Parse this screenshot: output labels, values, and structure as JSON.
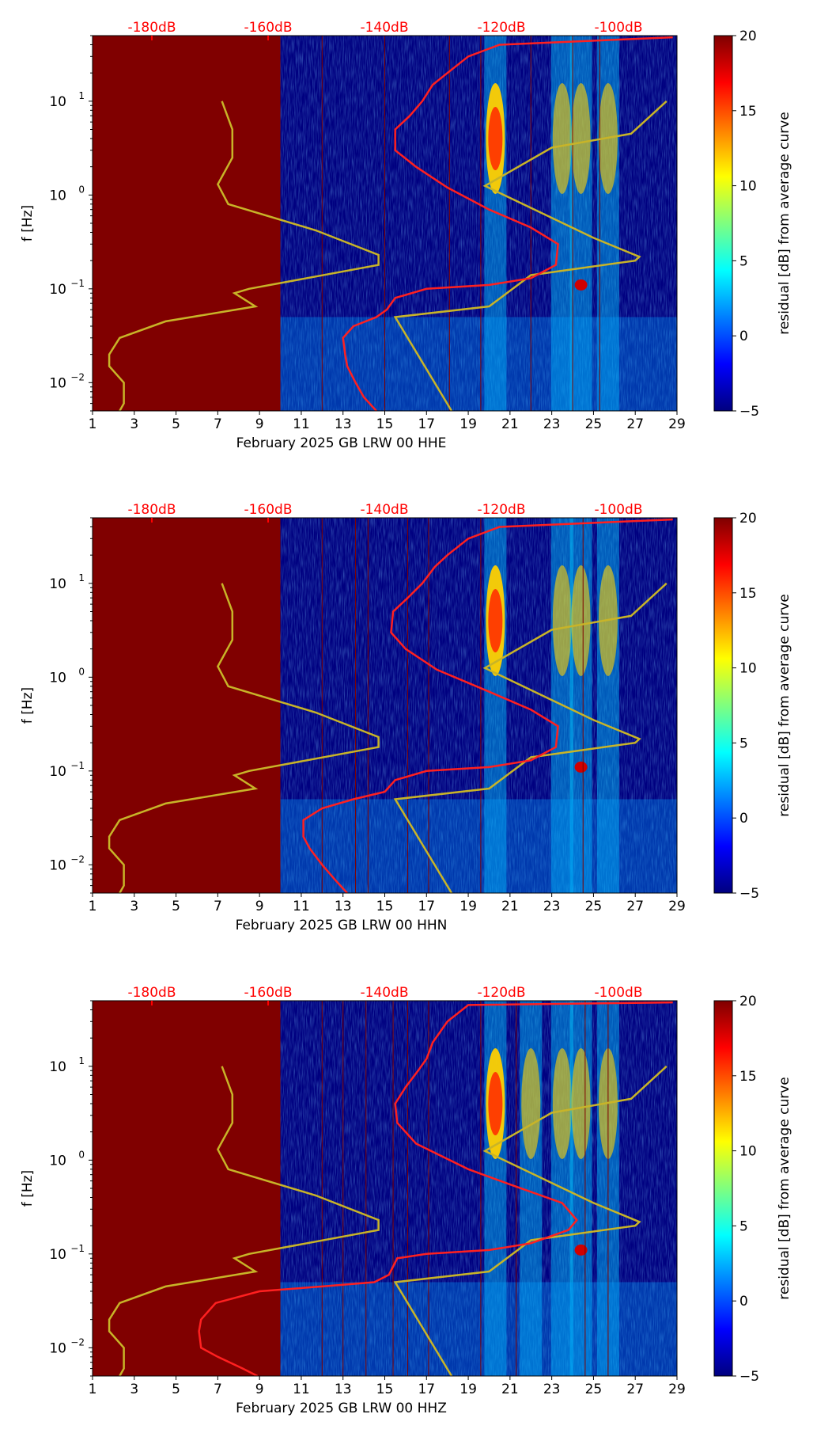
{
  "colorbar": {
    "label": "residual [dB] from average curve",
    "ticks": [
      "20",
      "15",
      "10",
      "5",
      "0",
      "−5"
    ],
    "range": [
      -5,
      20
    ],
    "colormap": [
      "#00007f",
      "#0000ff",
      "#007fff",
      "#00ffff",
      "#7fff7f",
      "#ffff00",
      "#ff7f00",
      "#ff0000",
      "#7f0000"
    ]
  },
  "panel_colors": {
    "background": "#000080",
    "nodata": "#800000",
    "model_curve": "#ff2020",
    "reference_curve": "#c8b428",
    "gridline": "#800000",
    "db_label": "#ff0000"
  },
  "chart_data": [
    {
      "type": "heatmap",
      "xlabel": "February 2025 GB LRW 00 HHE",
      "ylabel": "f [Hz]",
      "x_ticks": [
        "1",
        "3",
        "5",
        "7",
        "9",
        "11",
        "13",
        "15",
        "17",
        "19",
        "21",
        "23",
        "25",
        "27",
        "29"
      ],
      "y_ticks": [
        "10",
        "10",
        "10",
        "10"
      ],
      "y_tick_exponents": [
        "1",
        "0",
        "−1",
        "−2"
      ],
      "y_scale": "log",
      "xlim": [
        1,
        29
      ],
      "ylim": [
        0.005,
        50
      ],
      "top_axis_ticks": [
        "-180dB",
        "-160dB",
        "-140dB",
        "-120dB",
        "-100dB"
      ],
      "nodata_until_day": 10,
      "red_vlines": [
        12.0,
        15.0,
        18.1,
        19.6,
        22.0,
        24.0,
        25.3
      ],
      "bright_bands_days": [
        20.3,
        23.5,
        24.4,
        25.7
      ],
      "red_curve": [
        [
          14.6,
          0.005
        ],
        [
          14.0,
          0.007
        ],
        [
          13.6,
          0.01
        ],
        [
          13.2,
          0.015
        ],
        [
          13.1,
          0.02
        ],
        [
          13.0,
          0.03
        ],
        [
          13.5,
          0.04
        ],
        [
          14.6,
          0.05
        ],
        [
          15.1,
          0.06
        ],
        [
          15.5,
          0.08
        ],
        [
          17.0,
          0.1
        ],
        [
          20.0,
          0.11
        ],
        [
          22.0,
          0.13
        ],
        [
          23.2,
          0.18
        ],
        [
          23.3,
          0.3
        ],
        [
          22.0,
          0.45
        ],
        [
          20.0,
          0.7
        ],
        [
          18.0,
          1.2
        ],
        [
          16.5,
          2.0
        ],
        [
          15.5,
          3.0
        ],
        [
          15.5,
          5.0
        ],
        [
          16.2,
          7.0
        ],
        [
          16.8,
          10.0
        ],
        [
          17.3,
          15.0
        ],
        [
          18.0,
          20.0
        ],
        [
          19.0,
          30.0
        ],
        [
          20.5,
          40.0
        ],
        [
          28.8,
          48.0
        ]
      ],
      "yellow_curve": [
        [
          2.3,
          0.005
        ],
        [
          2.5,
          0.006
        ],
        [
          2.5,
          0.01
        ],
        [
          1.8,
          0.015
        ],
        [
          1.8,
          0.02
        ],
        [
          2.3,
          0.03
        ],
        [
          4.5,
          0.045
        ],
        [
          8.8,
          0.065
        ],
        [
          7.8,
          0.09
        ],
        [
          8.5,
          0.1
        ],
        [
          14.7,
          0.18
        ],
        [
          14.7,
          0.23
        ],
        [
          11.7,
          0.42
        ],
        [
          7.5,
          0.8
        ],
        [
          7.0,
          1.3
        ],
        [
          7.7,
          2.5
        ],
        [
          7.7,
          5.0
        ],
        [
          7.2,
          10.0
        ]
      ],
      "yellow_curve2": [
        [
          18.2,
          0.005
        ],
        [
          15.5,
          0.05
        ],
        [
          20.0,
          0.065
        ],
        [
          22.0,
          0.14
        ],
        [
          27.0,
          0.2
        ],
        [
          27.2,
          0.22
        ],
        [
          25.0,
          0.35
        ],
        [
          19.8,
          1.25
        ],
        [
          23.0,
          3.2
        ],
        [
          26.8,
          4.5
        ],
        [
          28.5,
          10.0
        ]
      ]
    },
    {
      "type": "heatmap",
      "xlabel": "February 2025 GB LRW 00 HHN",
      "ylabel": "f [Hz]",
      "x_ticks": [
        "1",
        "3",
        "5",
        "7",
        "9",
        "11",
        "13",
        "15",
        "17",
        "19",
        "21",
        "23",
        "25",
        "27",
        "29"
      ],
      "y_ticks": [
        "10",
        "10",
        "10",
        "10"
      ],
      "y_tick_exponents": [
        "1",
        "0",
        "−1",
        "−2"
      ],
      "y_scale": "log",
      "xlim": [
        1,
        29
      ],
      "ylim": [
        0.005,
        50
      ],
      "top_axis_ticks": [
        "-180dB",
        "-160dB",
        "-140dB",
        "-120dB",
        "-100dB"
      ],
      "nodata_until_day": 10,
      "red_vlines": [
        12.0,
        13.6,
        14.2,
        16.1,
        17.1,
        19.6,
        24.5
      ],
      "bright_bands_days": [
        20.3,
        23.5,
        24.4,
        25.7
      ],
      "red_curve": [
        [
          13.2,
          0.005
        ],
        [
          12.6,
          0.007
        ],
        [
          12.0,
          0.01
        ],
        [
          11.4,
          0.015
        ],
        [
          11.1,
          0.02
        ],
        [
          11.1,
          0.03
        ],
        [
          12.0,
          0.04
        ],
        [
          13.5,
          0.05
        ],
        [
          15.0,
          0.06
        ],
        [
          15.5,
          0.08
        ],
        [
          17.0,
          0.1
        ],
        [
          20.0,
          0.11
        ],
        [
          22.0,
          0.13
        ],
        [
          23.2,
          0.18
        ],
        [
          23.3,
          0.3
        ],
        [
          22.0,
          0.45
        ],
        [
          20.0,
          0.7
        ],
        [
          17.5,
          1.2
        ],
        [
          16.0,
          2.0
        ],
        [
          15.3,
          3.0
        ],
        [
          15.4,
          5.0
        ],
        [
          16.1,
          7.0
        ],
        [
          16.8,
          10.0
        ],
        [
          17.4,
          15.0
        ],
        [
          18.0,
          20.0
        ],
        [
          19.0,
          30.0
        ],
        [
          20.5,
          40.0
        ],
        [
          28.8,
          48.0
        ]
      ],
      "yellow_curve": [
        [
          2.3,
          0.005
        ],
        [
          2.5,
          0.006
        ],
        [
          2.5,
          0.01
        ],
        [
          1.8,
          0.015
        ],
        [
          1.8,
          0.02
        ],
        [
          2.3,
          0.03
        ],
        [
          4.5,
          0.045
        ],
        [
          8.8,
          0.065
        ],
        [
          7.8,
          0.09
        ],
        [
          8.5,
          0.1
        ],
        [
          14.7,
          0.18
        ],
        [
          14.7,
          0.23
        ],
        [
          11.7,
          0.42
        ],
        [
          7.5,
          0.8
        ],
        [
          7.0,
          1.3
        ],
        [
          7.7,
          2.5
        ],
        [
          7.7,
          5.0
        ],
        [
          7.2,
          10.0
        ]
      ],
      "yellow_curve2": [
        [
          18.2,
          0.005
        ],
        [
          15.5,
          0.05
        ],
        [
          20.0,
          0.065
        ],
        [
          22.0,
          0.14
        ],
        [
          27.0,
          0.2
        ],
        [
          27.2,
          0.22
        ],
        [
          25.0,
          0.35
        ],
        [
          19.8,
          1.25
        ],
        [
          23.0,
          3.2
        ],
        [
          26.8,
          4.5
        ],
        [
          28.5,
          10.0
        ]
      ]
    },
    {
      "type": "heatmap",
      "xlabel": "February 2025 GB LRW 00 HHZ",
      "ylabel": "f [Hz]",
      "x_ticks": [
        "1",
        "3",
        "5",
        "7",
        "9",
        "11",
        "13",
        "15",
        "17",
        "19",
        "21",
        "23",
        "25",
        "27",
        "29"
      ],
      "y_ticks": [
        "10",
        "10",
        "10",
        "10"
      ],
      "y_tick_exponents": [
        "1",
        "0",
        "−1",
        "−2"
      ],
      "y_scale": "log",
      "xlim": [
        1,
        29
      ],
      "ylim": [
        0.005,
        50
      ],
      "top_axis_ticks": [
        "-180dB",
        "-160dB",
        "-140dB",
        "-120dB",
        "-100dB"
      ],
      "nodata_until_day": 10,
      "red_vlines": [
        12.0,
        13.0,
        14.1,
        15.4,
        16.1,
        17.1,
        19.6,
        21.3,
        24.6,
        25.7
      ],
      "bright_bands_days": [
        20.3,
        22.0,
        23.5,
        24.4,
        25.7
      ],
      "red_curve": [
        [
          8.9,
          0.005
        ],
        [
          8.2,
          0.006
        ],
        [
          7.0,
          0.008
        ],
        [
          6.2,
          0.01
        ],
        [
          6.1,
          0.015
        ],
        [
          6.2,
          0.02
        ],
        [
          6.9,
          0.03
        ],
        [
          9.0,
          0.04
        ],
        [
          12.0,
          0.045
        ],
        [
          14.5,
          0.05
        ],
        [
          15.2,
          0.06
        ],
        [
          15.6,
          0.09
        ],
        [
          17.0,
          0.1
        ],
        [
          20.0,
          0.11
        ],
        [
          22.0,
          0.13
        ],
        [
          23.8,
          0.18
        ],
        [
          24.2,
          0.23
        ],
        [
          23.5,
          0.35
        ],
        [
          21.0,
          0.55
        ],
        [
          19.0,
          0.8
        ],
        [
          16.5,
          1.5
        ],
        [
          15.6,
          2.5
        ],
        [
          15.5,
          4.0
        ],
        [
          16.0,
          6.0
        ],
        [
          16.6,
          9.0
        ],
        [
          17.0,
          12.0
        ],
        [
          17.3,
          18.0
        ],
        [
          18.0,
          30.0
        ],
        [
          19.0,
          45.0
        ],
        [
          28.8,
          48.0
        ]
      ],
      "yellow_curve": [
        [
          2.3,
          0.005
        ],
        [
          2.5,
          0.006
        ],
        [
          2.5,
          0.01
        ],
        [
          1.8,
          0.015
        ],
        [
          1.8,
          0.02
        ],
        [
          2.3,
          0.03
        ],
        [
          4.5,
          0.045
        ],
        [
          8.8,
          0.065
        ],
        [
          7.8,
          0.09
        ],
        [
          8.5,
          0.1
        ],
        [
          14.7,
          0.18
        ],
        [
          14.7,
          0.23
        ],
        [
          11.7,
          0.42
        ],
        [
          7.5,
          0.8
        ],
        [
          7.0,
          1.3
        ],
        [
          7.7,
          2.5
        ],
        [
          7.7,
          5.0
        ],
        [
          7.2,
          10.0
        ]
      ],
      "yellow_curve2": [
        [
          18.2,
          0.005
        ],
        [
          15.5,
          0.05
        ],
        [
          20.0,
          0.065
        ],
        [
          22.0,
          0.14
        ],
        [
          27.0,
          0.2
        ],
        [
          27.2,
          0.22
        ],
        [
          25.0,
          0.35
        ],
        [
          19.8,
          1.25
        ],
        [
          23.0,
          3.2
        ],
        [
          26.8,
          4.5
        ],
        [
          28.5,
          10.0
        ]
      ]
    }
  ]
}
